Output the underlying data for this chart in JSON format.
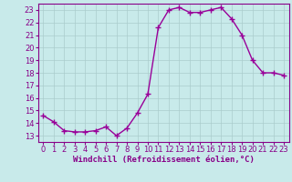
{
  "hours": [
    0,
    1,
    2,
    3,
    4,
    5,
    6,
    7,
    8,
    9,
    10,
    11,
    12,
    13,
    14,
    15,
    16,
    17,
    18,
    19,
    20,
    21,
    22,
    23
  ],
  "values": [
    14.6,
    14.1,
    13.4,
    13.3,
    13.3,
    13.4,
    13.7,
    13.0,
    13.6,
    14.8,
    16.3,
    21.6,
    23.0,
    23.2,
    22.8,
    22.8,
    23.0,
    23.2,
    22.3,
    21.0,
    19.0,
    18.0,
    18.0,
    17.8
  ],
  "line_color": "#990099",
  "marker": "+",
  "bg_color": "#c8eaea",
  "grid_color": "#aacccc",
  "xlabel": "Windchill (Refroidissement éolien,°C)",
  "ylabel": "",
  "ylim_min": 12.5,
  "ylim_max": 23.5,
  "xlim_min": -0.5,
  "xlim_max": 23.5,
  "yticks": [
    13,
    14,
    15,
    16,
    17,
    18,
    19,
    20,
    21,
    22,
    23
  ],
  "xticks": [
    0,
    1,
    2,
    3,
    4,
    5,
    6,
    7,
    8,
    9,
    10,
    11,
    12,
    13,
    14,
    15,
    16,
    17,
    18,
    19,
    20,
    21,
    22,
    23
  ],
  "tick_color": "#880088",
  "axis_color": "#880088",
  "xlabel_color": "#880088",
  "linewidth": 1.0,
  "markersize": 4,
  "tick_fontsize": 6,
  "xlabel_fontsize": 6.5
}
